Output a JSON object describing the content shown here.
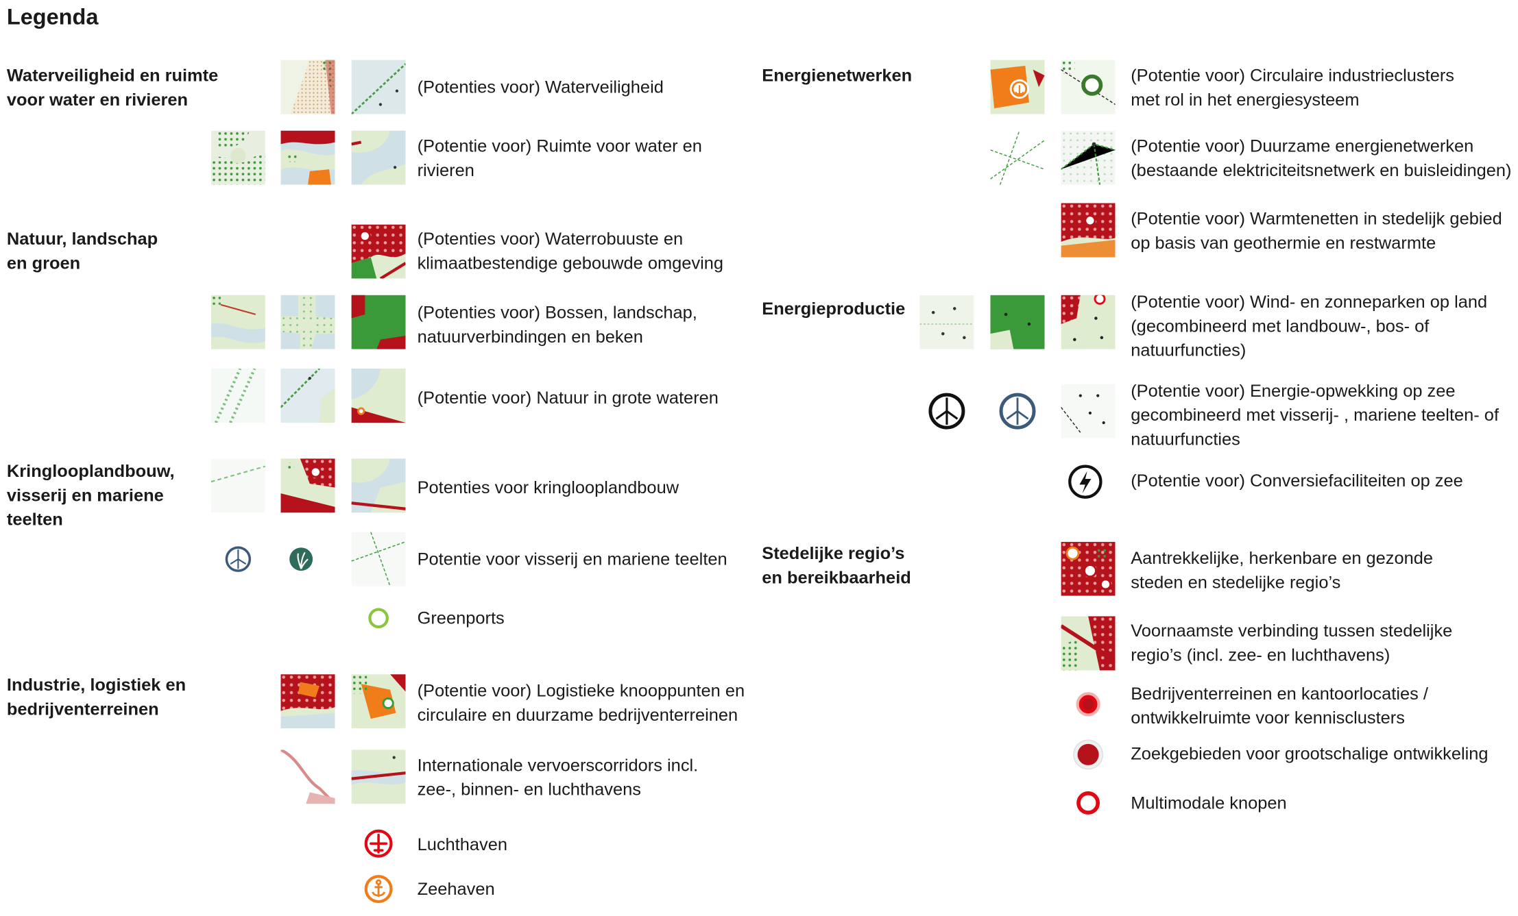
{
  "title": "Legenda",
  "categories": {
    "water": "Waterveiligheid en ruimte voor water en rivieren",
    "nature": "Natuur, landschap en groen",
    "circular": "Kringlooplandbouw, visserij en mariene teelten",
    "industry": "Industrie, logistiek en bedrijventerreinen",
    "energy_networks": "Energienetwerken",
    "energy_production": "Energieproductie",
    "urban": "Stedelijke regio’s en bereikbaarheid"
  },
  "items": {
    "waterveiligheid": "(Potenties voor) Waterveiligheid",
    "ruimte_water": "(Potentie voor) Ruimte voor water en rivieren",
    "waterrobuust": "(Potenties voor) Waterrobuuste en klimaatbestendige gebouwde omgeving",
    "bossen": "(Potenties voor) Bossen, landschap, natuurverbindingen en beken",
    "natuur_wateren": "(Potentie voor) Natuur in grote wateren",
    "kringlooplandbouw": "Potenties voor kringlooplandbouw",
    "visserij": "Potentie voor visserij en mariene teelten",
    "greenports": "Greenports",
    "logistiek": "(Potentie voor) Logistieke knooppunten en circulaire en duurzame bedrijventerreinen",
    "vervoerscorridors": "Internationale vervoerscorridors incl. zee-, binnen- en luchthavens",
    "luchthaven": "Luchthaven",
    "zeehaven": "Zeehaven",
    "industrieclusters": "(Potentie voor) Circulaire industrieclusters met rol in het energiesysteem",
    "energienetwerken": "(Potentie voor) Duurzame energienetwerken (bestaande elektriciteitsnetwerk en buisleidingen)",
    "warmtenetten": "(Potentie voor) Warmtenetten in stedelijk gebied op basis van geothermie en restwarmte",
    "windzon_land": "(Potentie voor) Wind- en zonneparken op land (gecombineerd met landbouw-, bos- of natuurfuncties)",
    "energie_zee": "(Potentie voor) Energie-opwekking op zee gecombineerd met visserij- , mariene teelten- of natuurfuncties",
    "conversie": "(Potentie voor) Conversiefaciliteiten op zee",
    "steden": "Aantrekkelijke, herkenbare en gezonde steden en stedelijke regio’s",
    "verbinding": "Voornaamste verbinding tussen stedelijke regio’s (incl. zee- en luchthavens)",
    "bedrijventerreinen": "Bedrijventerreinen en kantoorlocaties / ontwikkelruimte voor kennisclusters",
    "zoekgebieden": "Zoekgebieden voor grootschalige ontwikkeling",
    "multimodaal": "Multimodale knopen"
  },
  "colors": {
    "urban_red": "#b5121b",
    "bright_red": "#e30613",
    "green": "#3a9a3a",
    "light_green": "#dfeccf",
    "water_blue": "#cbdde6",
    "orange": "#f07d1a",
    "navy": "#3c5a7a",
    "greenport": "#8cc63f"
  }
}
